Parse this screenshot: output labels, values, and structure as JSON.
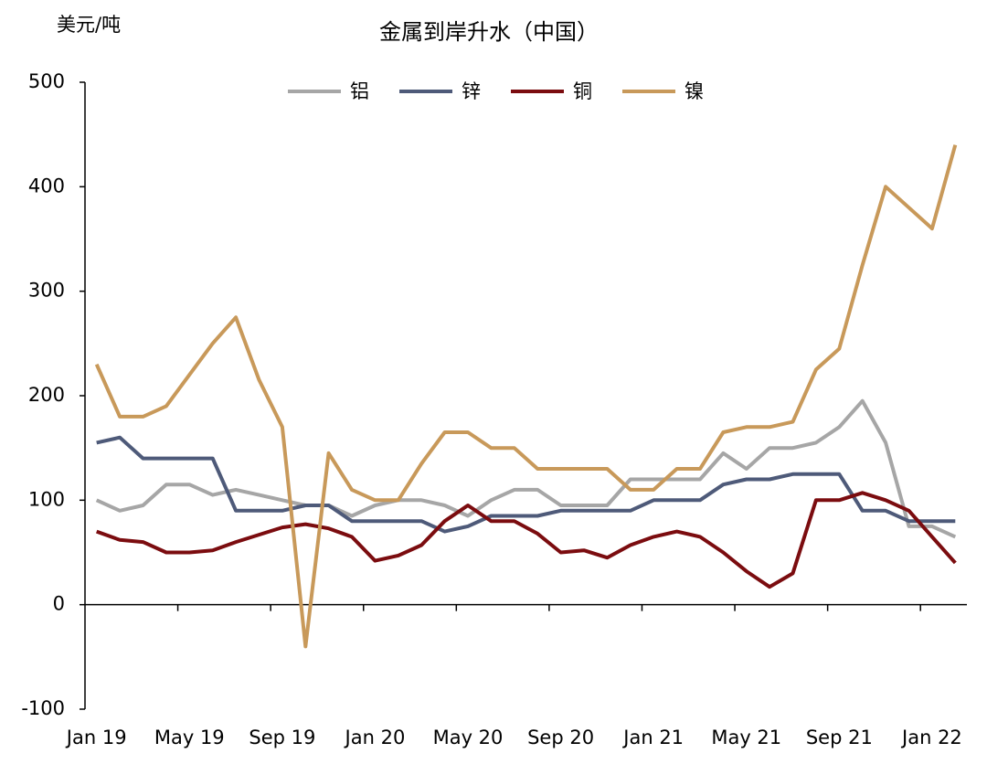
{
  "chart_data": {
    "type": "line",
    "title": "金属到岸升水（中国）",
    "y_unit": "美元/吨",
    "categories": [
      "Jan 19",
      null,
      null,
      null,
      "May 19",
      null,
      null,
      null,
      "Sep 19",
      null,
      null,
      null,
      "Jan 20",
      null,
      null,
      null,
      "May 20",
      null,
      null,
      null,
      "Sep 20",
      null,
      null,
      null,
      "Jan 21",
      null,
      null,
      null,
      "May 21",
      null,
      null,
      null,
      "Sep 21",
      null,
      null,
      null,
      "Jan 22",
      null
    ],
    "series": [
      {
        "name": "铝",
        "color": "#a6a6a6",
        "values": [
          100,
          90,
          95,
          115,
          115,
          105,
          110,
          105,
          100,
          95,
          95,
          85,
          95,
          100,
          100,
          95,
          85,
          100,
          110,
          110,
          95,
          95,
          95,
          120,
          120,
          120,
          120,
          145,
          130,
          150,
          150,
          155,
          170,
          195,
          155,
          75,
          75,
          65
        ]
      },
      {
        "name": "锌",
        "color": "#4e5a79",
        "values": [
          155,
          160,
          140,
          140,
          140,
          140,
          90,
          90,
          90,
          95,
          95,
          80,
          80,
          80,
          80,
          70,
          75,
          85,
          85,
          85,
          90,
          90,
          90,
          90,
          100,
          100,
          100,
          115,
          120,
          120,
          125,
          125,
          125,
          90,
          90,
          80,
          80,
          80
        ]
      },
      {
        "name": "铜",
        "color": "#7b0c0f",
        "values": [
          70,
          62,
          60,
          50,
          50,
          52,
          60,
          67,
          74,
          77,
          73,
          65,
          42,
          47,
          57,
          80,
          95,
          80,
          80,
          68,
          50,
          52,
          45,
          57,
          65,
          70,
          65,
          50,
          32,
          17,
          30,
          100,
          100,
          107,
          100,
          90,
          65,
          40
        ]
      },
      {
        "name": "镍",
        "color": "#c8995a",
        "values": [
          230,
          180,
          180,
          190,
          220,
          250,
          275,
          215,
          170,
          -40,
          145,
          110,
          100,
          100,
          135,
          165,
          165,
          150,
          150,
          130,
          130,
          130,
          130,
          110,
          110,
          130,
          130,
          165,
          170,
          170,
          175,
          225,
          245,
          325,
          400,
          380,
          360,
          440
        ]
      }
    ],
    "ylim": [
      -100,
      500
    ],
    "yticks": [
      -100,
      0,
      100,
      200,
      300,
      400,
      500
    ],
    "grid": false,
    "legend": "top"
  }
}
